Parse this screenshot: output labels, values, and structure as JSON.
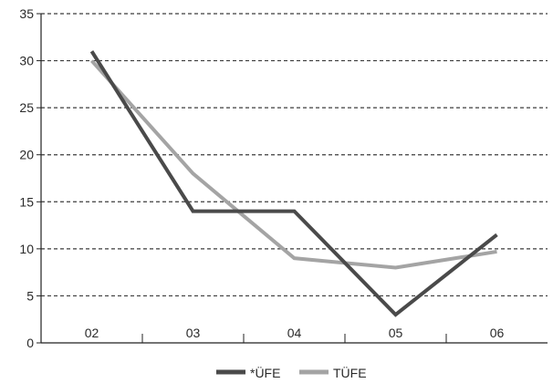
{
  "chart_data": {
    "type": "line",
    "title": "",
    "xlabel": "",
    "ylabel": "",
    "categories": [
      "02",
      "03",
      "04",
      "05",
      "06"
    ],
    "ylim": [
      0,
      35
    ],
    "yticks": [
      0,
      5,
      10,
      15,
      20,
      25,
      30,
      35
    ],
    "grid": "horizontal dashed",
    "legend_position": "bottom-center",
    "series": [
      {
        "name": "*ÜFE",
        "values": [
          31,
          14,
          14,
          3,
          11.5
        ],
        "color": "#4a4a4a"
      },
      {
        "name": "TÜFE",
        "values": [
          30,
          18,
          9,
          8,
          9.7
        ],
        "color": "#a4a4a4"
      }
    ]
  }
}
